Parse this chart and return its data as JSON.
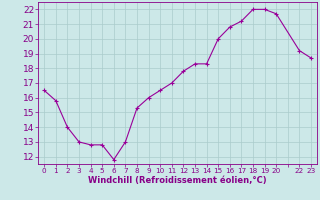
{
  "x": [
    0,
    1,
    2,
    3,
    4,
    5,
    6,
    7,
    8,
    9,
    10,
    11,
    12,
    13,
    14,
    15,
    16,
    17,
    18,
    19,
    20,
    22,
    23
  ],
  "y": [
    16.5,
    15.8,
    14.0,
    13.0,
    12.8,
    12.8,
    11.8,
    13.0,
    15.3,
    16.0,
    16.5,
    17.0,
    17.8,
    18.3,
    18.3,
    20.0,
    20.8,
    21.2,
    22.0,
    22.0,
    21.7,
    19.2,
    18.7
  ],
  "line_color": "#990099",
  "marker": "+",
  "marker_size": 3,
  "marker_lw": 0.8,
  "bg_color": "#cce8e8",
  "grid_color": "#aacccc",
  "xlabel": "Windchill (Refroidissement éolien,°C)",
  "xlabel_color": "#880088",
  "tick_color": "#880088",
  "spine_color": "#880088",
  "ylim": [
    11.5,
    22.5
  ],
  "xlim": [
    -0.5,
    23.5
  ],
  "yticks": [
    12,
    13,
    14,
    15,
    16,
    17,
    18,
    19,
    20,
    21,
    22
  ],
  "xtick_labels": [
    "0",
    "1",
    "2",
    "3",
    "4",
    "5",
    "6",
    "7",
    "8",
    "9",
    "10",
    "11",
    "12",
    "13",
    "14",
    "15",
    "16",
    "17",
    "18",
    "19",
    "20",
    "",
    "22",
    "23"
  ],
  "xtick_positions": [
    0,
    1,
    2,
    3,
    4,
    5,
    6,
    7,
    8,
    9,
    10,
    11,
    12,
    13,
    14,
    15,
    16,
    17,
    18,
    19,
    20,
    21,
    22,
    23
  ],
  "xlabel_fontsize": 6.0,
  "ytick_fontsize": 6.5,
  "xtick_fontsize": 5.2
}
